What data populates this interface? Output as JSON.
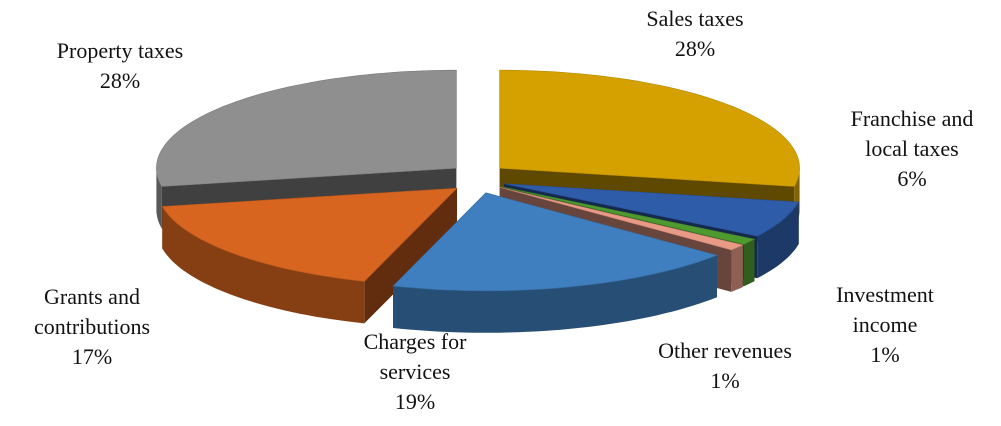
{
  "chart_data": {
    "type": "pie3d",
    "categories": [
      "Sales taxes",
      "Franchise and local taxes",
      "Investment income",
      "Other revenues",
      "Charges for services",
      "Grants and contributions",
      "Property taxes"
    ],
    "values": [
      28,
      6,
      1,
      1,
      19,
      17,
      28
    ],
    "value_labels": [
      "28%",
      "6%",
      "1%",
      "1%",
      "19%",
      "17%",
      "28%"
    ],
    "colors": [
      "#d4a100",
      "#2f5ca8",
      "#4e9a2f",
      "#e89a86",
      "#3f7fbf",
      "#d7651f",
      "#8f8f8f"
    ]
  }
}
